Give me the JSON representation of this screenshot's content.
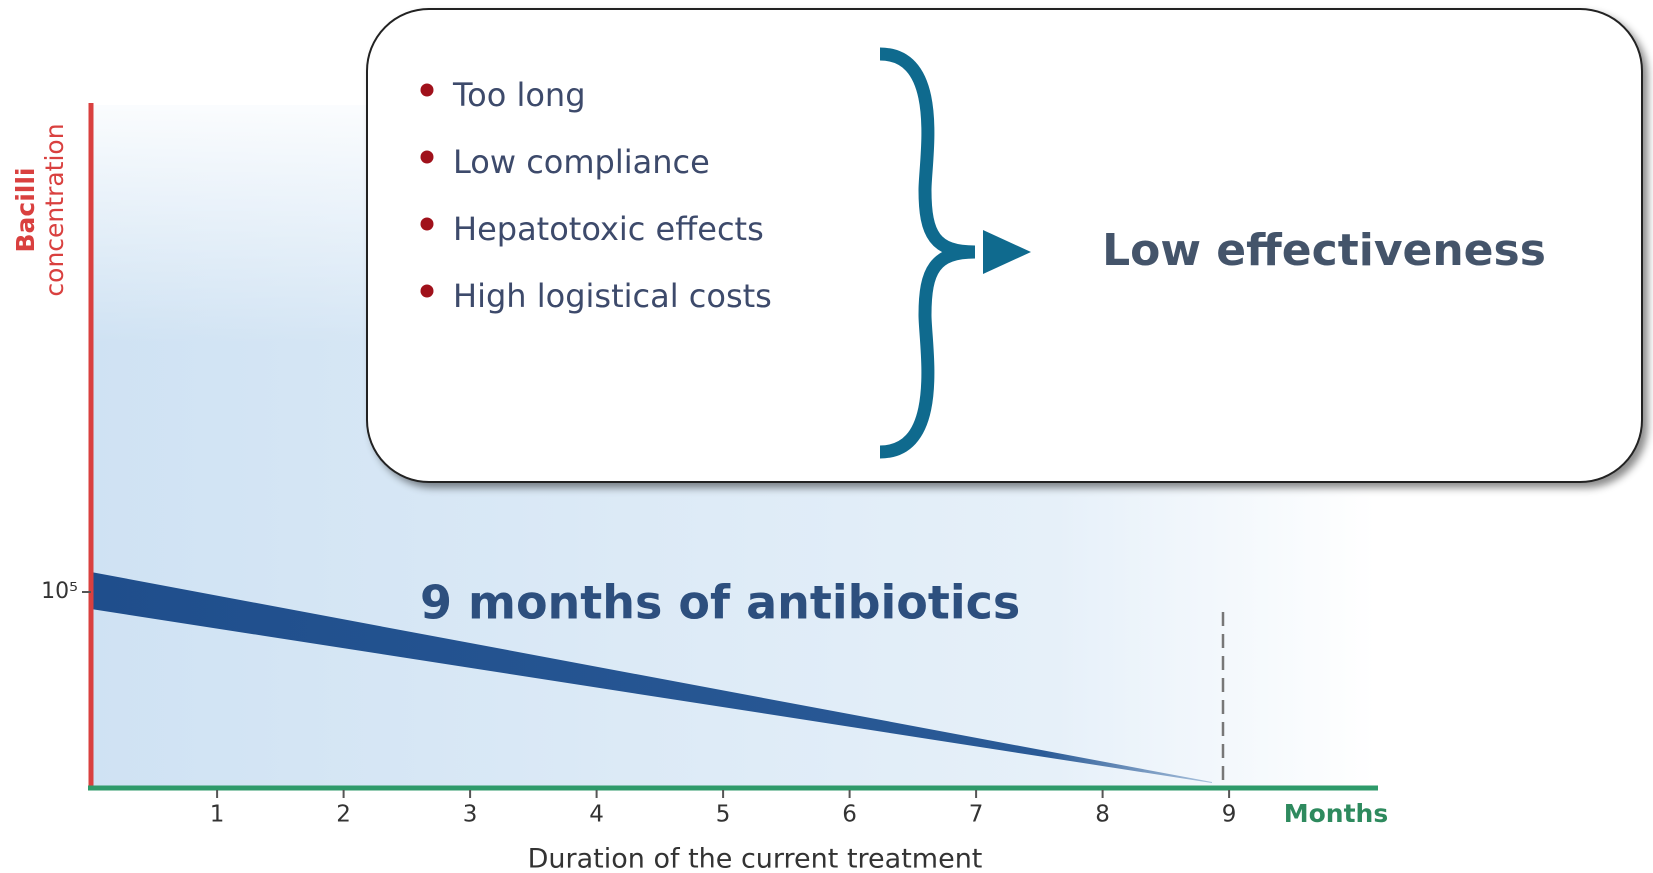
{
  "axis": {
    "y_label": [
      "Bacilli",
      "concentration"
    ],
    "y_tick": "10⁵",
    "x_ticks": [
      "1",
      "2",
      "3",
      "4",
      "5",
      "6",
      "7",
      "8",
      "9"
    ],
    "x_unit": "Months",
    "x_label": "Duration of the current treatment"
  },
  "band_label": "9 months of antibiotics",
  "box": {
    "bullets": [
      "Too long",
      "Low compliance",
      "Hepatotoxic effects",
      "High logistical costs"
    ],
    "conclusion": "Low effectiveness"
  }
}
